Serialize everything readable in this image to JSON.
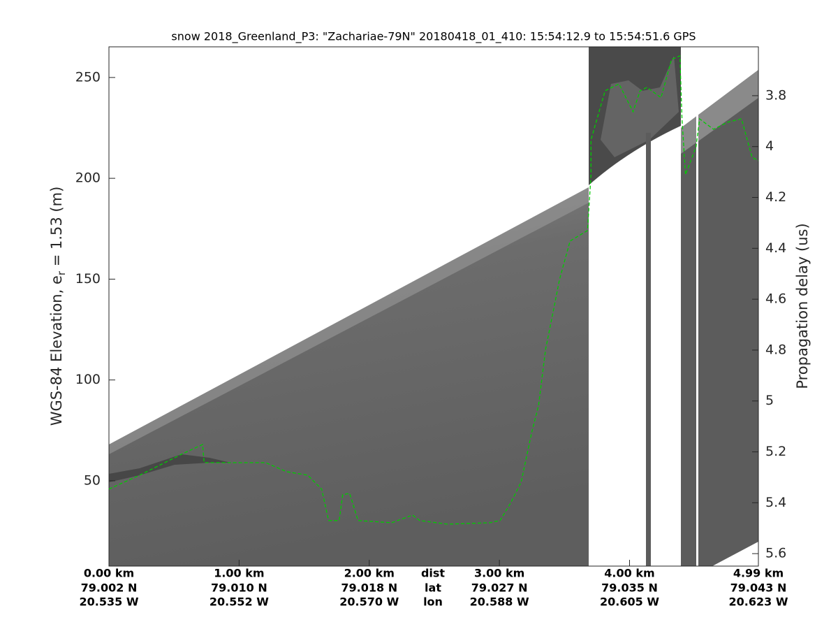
{
  "chart_data": {
    "type": "line",
    "title": "snow 2018_Greenland_P3: \"Zachariae-79N\"  20180418_01_410: 15:54:12.9 to 15:54:51.6 GPS",
    "ylabel": [
      "WGS-84 Elevation, e",
      "r",
      " = 1.53 (m)"
    ],
    "y2label": "Propagation delay (us)",
    "row_labels": [
      "dist",
      "lat",
      "lon"
    ],
    "xlim": [
      0,
      4.99
    ],
    "ylim": [
      7.7,
      265.2
    ],
    "y2lim": [
      5.649,
      3.608
    ],
    "xticks": [
      {
        "value": 0,
        "label": "0.00 km",
        "lat": "79.002 N",
        "lon": "20.535 W"
      },
      {
        "value": 1,
        "label": "1.00 km",
        "lat": "79.010 N",
        "lon": "20.552 W"
      },
      {
        "value": 2,
        "label": "2.00 km",
        "lat": "79.018 N",
        "lon": "20.570 W"
      },
      {
        "value": 3,
        "label": "3.00 km",
        "lat": "79.027 N",
        "lon": "20.588 W"
      },
      {
        "value": 4,
        "label": "4.00 km",
        "lat": "79.035 N",
        "lon": "20.605 W"
      },
      {
        "value": 4.99,
        "label": "4.99 km",
        "lat": "79.043 N",
        "lon": "20.623 W"
      }
    ],
    "yticks": [
      50,
      100,
      150,
      200,
      250
    ],
    "y2ticks": [
      3.8,
      4,
      4.2,
      4.4,
      4.6,
      4.8,
      5,
      5.2,
      5.4,
      5.6
    ],
    "series": [
      {
        "color": "#00cc00",
        "x": [
          0,
          0.237,
          0.559,
          0.72,
          0.731,
          1.204,
          1.366,
          1.527,
          1.634,
          1.688,
          1.769,
          1.796,
          1.849,
          1.914,
          2.172,
          2.333,
          2.387,
          2.602,
          2.925,
          3.005,
          3.086,
          3.167,
          3.247,
          3.301,
          3.355,
          3.409,
          3.462,
          3.543,
          3.677,
          3.704,
          3.704,
          3.812,
          3.919,
          4.027,
          4.081,
          4.134,
          4.242,
          4.323,
          4.387,
          4.403,
          4.43,
          4.511,
          4.538,
          4.645,
          4.753,
          4.86,
          4.941,
          4.99
        ],
        "values": [
          45.9,
          52.8,
          63.2,
          68.0,
          59.0,
          59.0,
          54.5,
          52.8,
          45.9,
          30.3,
          30.3,
          43.1,
          43.8,
          30.3,
          29.2,
          33.0,
          30.3,
          28.5,
          29.2,
          30.3,
          38.9,
          49.3,
          73.6,
          87.4,
          115.2,
          132.5,
          149.8,
          168.9,
          174.1,
          201.8,
          219.1,
          243.4,
          246.8,
          233.0,
          243.4,
          245.1,
          240.0,
          259.0,
          260.7,
          229.5,
          201.8,
          215.6,
          229.5,
          224.3,
          227.8,
          229.5,
          210.5,
          208.7
        ]
      }
    ]
  }
}
